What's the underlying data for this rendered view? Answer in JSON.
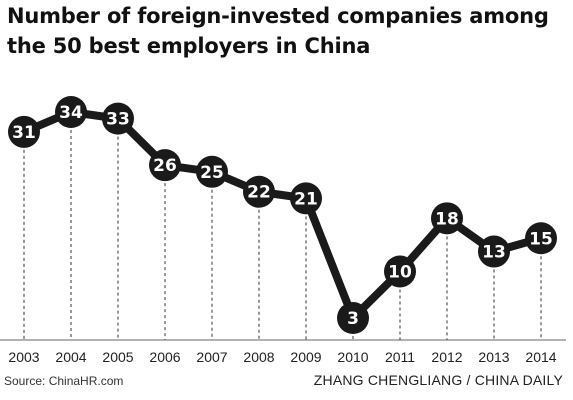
{
  "chart_data": {
    "type": "line",
    "title_lines": [
      "Number of foreign-invested companies among",
      "the 50 best employers in China"
    ],
    "categories": [
      "2003",
      "2004",
      "2005",
      "2006",
      "2007",
      "2008",
      "2009",
      "2010",
      "2011",
      "2012",
      "2013",
      "2014"
    ],
    "values": [
      31,
      34,
      33,
      26,
      25,
      22,
      21,
      3,
      10,
      18,
      13,
      15
    ],
    "ylim": [
      0,
      40
    ],
    "grid": false,
    "source": "Source: ChinaHR.com",
    "credit": "ZHANG CHENGLIANG / CHINA DAILY",
    "colors": {
      "line": "#1a1a1a",
      "marker": "#1a1a1a",
      "marker_text": "#ffffff",
      "dashed": "#333333"
    }
  }
}
